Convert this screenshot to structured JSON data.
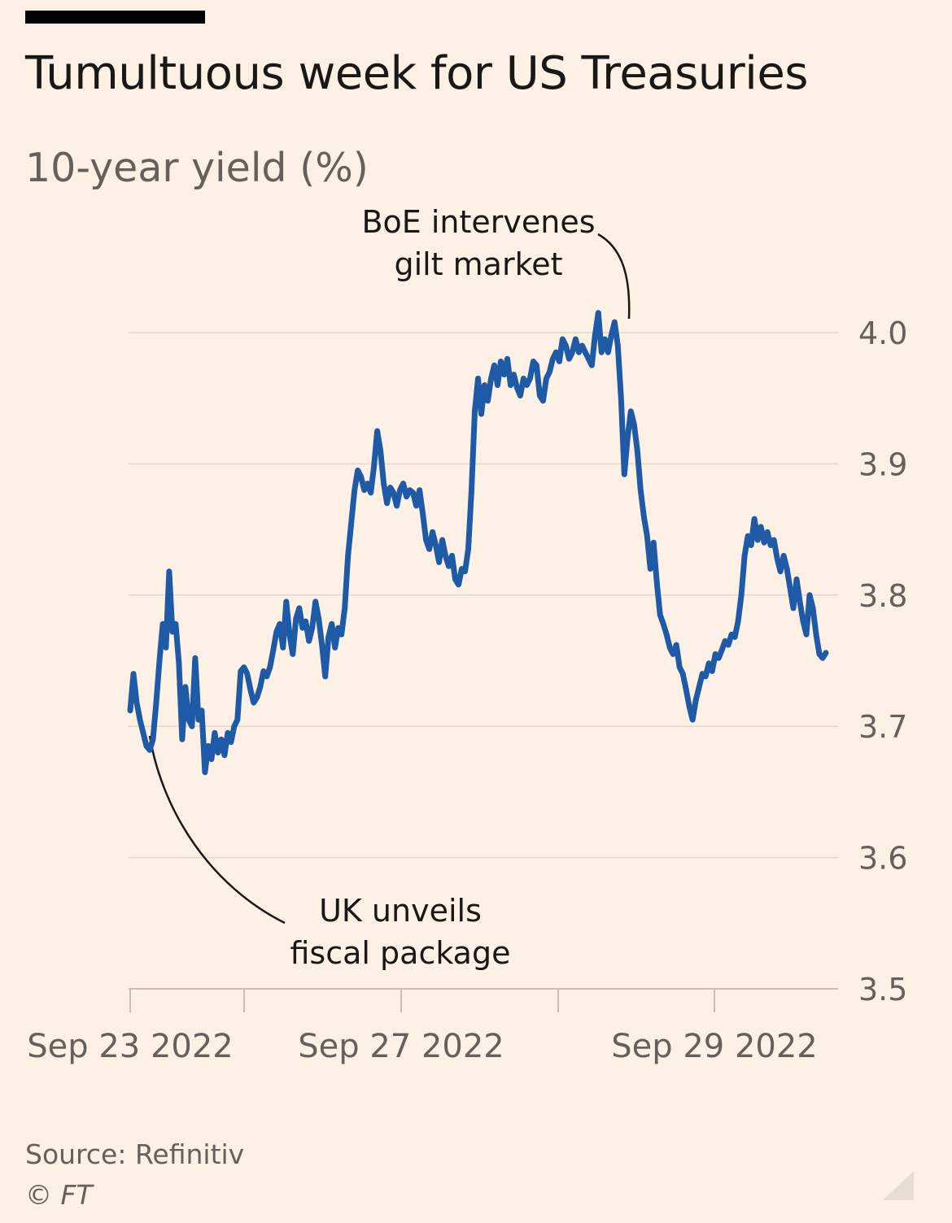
{
  "header": {
    "title": "Tumultuous week for US Treasuries",
    "subtitle": "10-year yield (%)"
  },
  "footer": {
    "source": "Source: Refinitiv",
    "copyright": "© FT"
  },
  "colors": {
    "background": "#fdf1e6",
    "line": "#1f5aa6",
    "grid": "#e3d8cd",
    "text": "#1a1817",
    "muted": "#66605c"
  },
  "chart_data": {
    "type": "line",
    "title": "Tumultuous week for US Treasuries",
    "subtitle": "10-year yield (%)",
    "ylim": [
      3.5,
      4.0
    ],
    "yticks": [
      3.5,
      3.6,
      3.7,
      3.8,
      3.9,
      4.0
    ],
    "ytick_labels": [
      "3.5",
      "3.6",
      "3.7",
      "3.8",
      "3.9",
      "4.0"
    ],
    "y_axis_position": "right",
    "grid": true,
    "x_tick_labels": [
      {
        "label": "Sep 23 2022",
        "x": 0
      },
      {
        "label": "",
        "x": 0.7
      },
      {
        "label": "Sep 27 2022",
        "x": 1.7
      },
      {
        "label": "",
        "x": 2.7
      },
      {
        "label": "Sep 29 2022",
        "x": 3.7
      }
    ],
    "xlim": [
      0,
      4.45
    ],
    "series": [
      {
        "values": [
          [
            0.0,
            3.712
          ],
          [
            0.02,
            3.74
          ],
          [
            0.04,
            3.718
          ],
          [
            0.06,
            3.705
          ],
          [
            0.08,
            3.695
          ],
          [
            0.1,
            3.685
          ],
          [
            0.12,
            3.682
          ],
          [
            0.14,
            3.69
          ],
          [
            0.16,
            3.718
          ],
          [
            0.18,
            3.75
          ],
          [
            0.2,
            3.778
          ],
          [
            0.22,
            3.76
          ],
          [
            0.24,
            3.818
          ],
          [
            0.26,
            3.772
          ],
          [
            0.28,
            3.778
          ],
          [
            0.3,
            3.748
          ],
          [
            0.32,
            3.69
          ],
          [
            0.34,
            3.73
          ],
          [
            0.36,
            3.705
          ],
          [
            0.38,
            3.7
          ],
          [
            0.4,
            3.752
          ],
          [
            0.42,
            3.705
          ],
          [
            0.44,
            3.712
          ],
          [
            0.46,
            3.665
          ],
          [
            0.48,
            3.685
          ],
          [
            0.5,
            3.675
          ],
          [
            0.52,
            3.695
          ],
          [
            0.54,
            3.68
          ],
          [
            0.56,
            3.69
          ],
          [
            0.58,
            3.678
          ],
          [
            0.6,
            3.695
          ],
          [
            0.62,
            3.688
          ],
          [
            0.64,
            3.7
          ],
          [
            0.66,
            3.705
          ],
          [
            0.68,
            3.742
          ],
          [
            0.7,
            3.745
          ],
          [
            0.72,
            3.74
          ],
          [
            0.74,
            3.728
          ],
          [
            0.76,
            3.718
          ],
          [
            0.78,
            3.722
          ],
          [
            0.8,
            3.73
          ],
          [
            0.82,
            3.742
          ],
          [
            0.84,
            3.738
          ],
          [
            0.86,
            3.745
          ],
          [
            0.88,
            3.758
          ],
          [
            0.9,
            3.772
          ],
          [
            0.92,
            3.778
          ],
          [
            0.94,
            3.76
          ],
          [
            0.96,
            3.795
          ],
          [
            0.98,
            3.77
          ],
          [
            1.0,
            3.755
          ],
          [
            1.02,
            3.782
          ],
          [
            1.04,
            3.79
          ],
          [
            1.06,
            3.775
          ],
          [
            1.08,
            3.78
          ],
          [
            1.1,
            3.765
          ],
          [
            1.12,
            3.775
          ],
          [
            1.14,
            3.795
          ],
          [
            1.16,
            3.782
          ],
          [
            1.18,
            3.762
          ],
          [
            1.2,
            3.738
          ],
          [
            1.22,
            3.768
          ],
          [
            1.24,
            3.778
          ],
          [
            1.26,
            3.76
          ],
          [
            1.28,
            3.775
          ],
          [
            1.3,
            3.77
          ],
          [
            1.32,
            3.79
          ],
          [
            1.34,
            3.83
          ],
          [
            1.36,
            3.855
          ],
          [
            1.38,
            3.88
          ],
          [
            1.4,
            3.895
          ],
          [
            1.42,
            3.89
          ],
          [
            1.44,
            3.88
          ],
          [
            1.46,
            3.885
          ],
          [
            1.48,
            3.878
          ],
          [
            1.5,
            3.898
          ],
          [
            1.52,
            3.925
          ],
          [
            1.54,
            3.91
          ],
          [
            1.56,
            3.885
          ],
          [
            1.58,
            3.87
          ],
          [
            1.6,
            3.882
          ],
          [
            1.62,
            3.878
          ],
          [
            1.64,
            3.868
          ],
          [
            1.66,
            3.88
          ],
          [
            1.68,
            3.885
          ],
          [
            1.7,
            3.875
          ],
          [
            1.72,
            3.88
          ],
          [
            1.74,
            3.878
          ],
          [
            1.76,
            3.868
          ],
          [
            1.78,
            3.88
          ],
          [
            1.8,
            3.862
          ],
          [
            1.82,
            3.842
          ],
          [
            1.84,
            3.835
          ],
          [
            1.86,
            3.848
          ],
          [
            1.88,
            3.838
          ],
          [
            1.9,
            3.825
          ],
          [
            1.92,
            3.842
          ],
          [
            1.94,
            3.83
          ],
          [
            1.96,
            3.822
          ],
          [
            1.98,
            3.83
          ],
          [
            2.0,
            3.812
          ],
          [
            2.02,
            3.808
          ],
          [
            2.04,
            3.82
          ],
          [
            2.06,
            3.818
          ],
          [
            2.08,
            3.835
          ],
          [
            2.1,
            3.88
          ],
          [
            2.12,
            3.94
          ],
          [
            2.14,
            3.965
          ],
          [
            2.16,
            3.938
          ],
          [
            2.18,
            3.96
          ],
          [
            2.2,
            3.948
          ],
          [
            2.22,
            3.965
          ],
          [
            2.24,
            3.975
          ],
          [
            2.26,
            3.96
          ],
          [
            2.28,
            3.978
          ],
          [
            2.3,
            3.968
          ],
          [
            2.32,
            3.98
          ],
          [
            2.34,
            3.96
          ],
          [
            2.36,
            3.968
          ],
          [
            2.38,
            3.958
          ],
          [
            2.4,
            3.952
          ],
          [
            2.42,
            3.965
          ],
          [
            2.44,
            3.96
          ],
          [
            2.46,
            3.965
          ],
          [
            2.48,
            3.978
          ],
          [
            2.5,
            3.975
          ],
          [
            2.52,
            3.952
          ],
          [
            2.54,
            3.948
          ],
          [
            2.56,
            3.965
          ],
          [
            2.58,
            3.97
          ],
          [
            2.6,
            3.98
          ],
          [
            2.62,
            3.985
          ],
          [
            2.64,
            3.978
          ],
          [
            2.66,
            3.995
          ],
          [
            2.68,
            3.99
          ],
          [
            2.7,
            3.98
          ],
          [
            2.72,
            3.985
          ],
          [
            2.74,
            3.995
          ],
          [
            2.76,
            3.985
          ],
          [
            2.78,
            3.99
          ],
          [
            2.8,
            3.985
          ],
          [
            2.82,
            3.98
          ],
          [
            2.84,
            3.975
          ],
          [
            2.86,
            3.998
          ],
          [
            2.88,
            4.015
          ],
          [
            2.9,
            3.985
          ],
          [
            2.92,
            3.995
          ],
          [
            2.94,
            3.985
          ],
          [
            2.96,
            3.998
          ],
          [
            2.98,
            4.008
          ],
          [
            3.0,
            3.99
          ],
          [
            3.02,
            3.95
          ],
          [
            3.04,
            3.892
          ],
          [
            3.06,
            3.92
          ],
          [
            3.08,
            3.94
          ],
          [
            3.1,
            3.93
          ],
          [
            3.12,
            3.91
          ],
          [
            3.14,
            3.88
          ],
          [
            3.16,
            3.86
          ],
          [
            3.18,
            3.845
          ],
          [
            3.2,
            3.82
          ],
          [
            3.22,
            3.84
          ],
          [
            3.24,
            3.81
          ],
          [
            3.26,
            3.785
          ],
          [
            3.28,
            3.778
          ],
          [
            3.3,
            3.77
          ],
          [
            3.32,
            3.76
          ],
          [
            3.34,
            3.755
          ],
          [
            3.36,
            3.762
          ],
          [
            3.38,
            3.745
          ],
          [
            3.4,
            3.74
          ],
          [
            3.42,
            3.728
          ],
          [
            3.44,
            3.715
          ],
          [
            3.46,
            3.705
          ],
          [
            3.48,
            3.72
          ],
          [
            3.5,
            3.73
          ],
          [
            3.52,
            3.74
          ],
          [
            3.54,
            3.738
          ],
          [
            3.56,
            3.748
          ],
          [
            3.58,
            3.742
          ],
          [
            3.6,
            3.755
          ],
          [
            3.62,
            3.752
          ],
          [
            3.64,
            3.758
          ],
          [
            3.66,
            3.765
          ],
          [
            3.68,
            3.762
          ],
          [
            3.7,
            3.77
          ],
          [
            3.72,
            3.768
          ],
          [
            3.74,
            3.78
          ],
          [
            3.76,
            3.8
          ],
          [
            3.78,
            3.83
          ],
          [
            3.8,
            3.845
          ],
          [
            3.82,
            3.838
          ],
          [
            3.84,
            3.858
          ],
          [
            3.86,
            3.842
          ],
          [
            3.88,
            3.852
          ],
          [
            3.9,
            3.84
          ],
          [
            3.92,
            3.848
          ],
          [
            3.94,
            3.838
          ],
          [
            3.96,
            3.842
          ],
          [
            3.98,
            3.828
          ],
          [
            4.0,
            3.818
          ],
          [
            4.02,
            3.83
          ],
          [
            4.04,
            3.82
          ],
          [
            4.06,
            3.805
          ],
          [
            4.08,
            3.79
          ],
          [
            4.1,
            3.812
          ],
          [
            4.12,
            3.795
          ],
          [
            4.14,
            3.78
          ],
          [
            4.16,
            3.77
          ],
          [
            4.18,
            3.8
          ],
          [
            4.2,
            3.79
          ],
          [
            4.22,
            3.77
          ],
          [
            4.24,
            3.755
          ],
          [
            4.26,
            3.752
          ],
          [
            4.28,
            3.756
          ]
        ]
      }
    ],
    "annotations": [
      {
        "lines": [
          "BoE intervenes",
          "gilt market"
        ],
        "x": 2.98,
        "y": 4.01
      },
      {
        "lines": [
          "UK unveils",
          "fiscal package"
        ],
        "x": 0.12,
        "y": 3.685
      }
    ]
  }
}
